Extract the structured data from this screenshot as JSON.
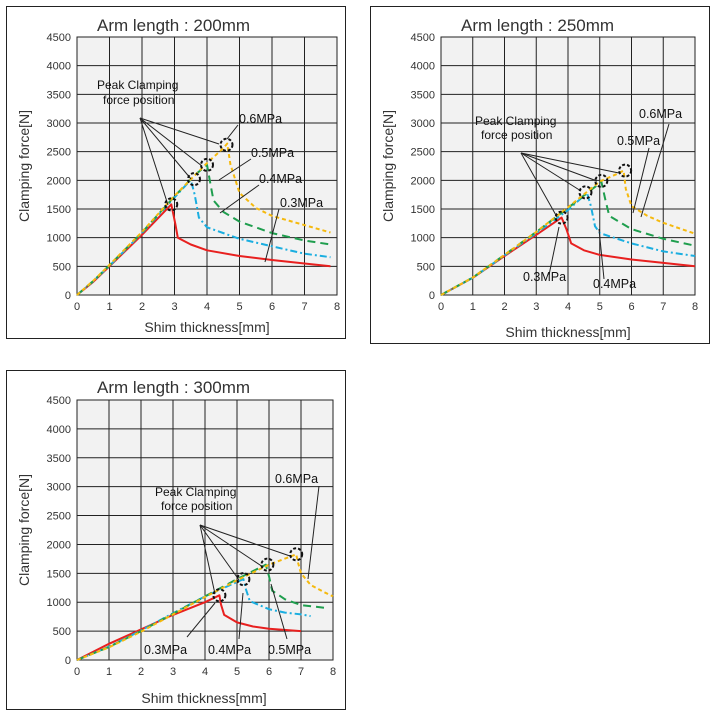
{
  "chart_data": [
    {
      "type": "line",
      "title": "Arm length : 200mm",
      "xlabel": "Shim thickness[mm]",
      "ylabel": "Clamping force[N]",
      "xlim": [
        0,
        8
      ],
      "ylim": [
        0,
        4500
      ],
      "xticks": [
        "0",
        "1",
        "2",
        "3",
        "4",
        "5",
        "6",
        "7",
        "8"
      ],
      "yticks": [
        "0",
        "500",
        "1000",
        "1500",
        "2000",
        "2500",
        "3000",
        "3500",
        "4000",
        "4500"
      ],
      "grid": true,
      "annotation": [
        "Peak Clamping",
        "force position"
      ],
      "series": [
        {
          "name": "0.3MPa",
          "color": "#e8201f",
          "dash": "",
          "points": [
            [
              0,
              0
            ],
            [
              0.5,
              230
            ],
            [
              1,
              500
            ],
            [
              2,
              1050
            ],
            [
              2.9,
              1580
            ],
            [
              3.02,
              1250
            ],
            [
              3.1,
              1000
            ],
            [
              3.5,
              880
            ],
            [
              4,
              780
            ],
            [
              5,
              680
            ],
            [
              6,
              610
            ],
            [
              7,
              550
            ],
            [
              7.8,
              500
            ]
          ]
        },
        {
          "name": "0.4MPa",
          "color": "#1aaee0",
          "dash": "7,3,2,3",
          "points": [
            [
              0,
              0
            ],
            [
              0.5,
              240
            ],
            [
              1,
              510
            ],
            [
              2,
              1080
            ],
            [
              3,
              1700
            ],
            [
              3.5,
              2010
            ],
            [
              3.62,
              1750
            ],
            [
              3.75,
              1350
            ],
            [
              4,
              1180
            ],
            [
              5,
              980
            ],
            [
              6,
              850
            ],
            [
              7,
              720
            ],
            [
              7.8,
              660
            ]
          ]
        },
        {
          "name": "0.5MPa",
          "color": "#1f9e4e",
          "dash": "8,5",
          "points": [
            [
              0,
              0
            ],
            [
              0.5,
              245
            ],
            [
              1,
              520
            ],
            [
              2,
              1090
            ],
            [
              3,
              1720
            ],
            [
              3.6,
              2080
            ],
            [
              4,
              2270
            ],
            [
              4.1,
              1950
            ],
            [
              4.2,
              1650
            ],
            [
              4.5,
              1450
            ],
            [
              5,
              1280
            ],
            [
              6,
              1080
            ],
            [
              7,
              950
            ],
            [
              7.8,
              880
            ]
          ]
        },
        {
          "name": "0.6MPa",
          "color": "#f5b90d",
          "dash": "4,3",
          "points": [
            [
              0,
              0
            ],
            [
              0.5,
              250
            ],
            [
              1,
              525
            ],
            [
              2,
              1100
            ],
            [
              3,
              1730
            ],
            [
              4,
              2300
            ],
            [
              4.5,
              2560
            ],
            [
              4.62,
              2640
            ],
            [
              4.72,
              2280
            ],
            [
              5,
              1780
            ],
            [
              5.5,
              1520
            ],
            [
              6,
              1380
            ],
            [
              7,
              1220
            ],
            [
              7.8,
              1090
            ]
          ]
        }
      ],
      "peak_markers": [
        [
          2.9,
          1580
        ],
        [
          3.6,
          2020
        ],
        [
          4,
          2270
        ],
        [
          4.6,
          2620
        ]
      ],
      "curve_labels": [
        "0.6MPa",
        "0.5MPa",
        "0.4MPa",
        "0.3MPa"
      ]
    },
    {
      "type": "line",
      "title": "Arm length : 250mm",
      "xlabel": "Shim thickness[mm]",
      "ylabel": "Clamping force[N]",
      "xlim": [
        0,
        8
      ],
      "ylim": [
        0,
        4500
      ],
      "xticks": [
        "0",
        "1",
        "2",
        "3",
        "4",
        "5",
        "6",
        "7",
        "8"
      ],
      "yticks": [
        "0",
        "500",
        "1000",
        "1500",
        "2000",
        "2500",
        "3000",
        "3500",
        "4000",
        "4500"
      ],
      "grid": true,
      "annotation": [
        "Peak Clamping",
        "force position"
      ],
      "series": [
        {
          "name": "0.3MPa",
          "color": "#e8201f",
          "dash": "",
          "points": [
            [
              0,
              0
            ],
            [
              1,
              300
            ],
            [
              2,
              680
            ],
            [
              3,
              1050
            ],
            [
              3.8,
              1350
            ],
            [
              3.95,
              1150
            ],
            [
              4.1,
              900
            ],
            [
              4.5,
              780
            ],
            [
              5,
              700
            ],
            [
              6,
              620
            ],
            [
              7,
              560
            ],
            [
              8,
              500
            ]
          ]
        },
        {
          "name": "0.4MPa",
          "color": "#1aaee0",
          "dash": "7,3,2,3",
          "points": [
            [
              0,
              0
            ],
            [
              1,
              300
            ],
            [
              2,
              690
            ],
            [
              3,
              1080
            ],
            [
              4,
              1480
            ],
            [
              4.6,
              1780
            ],
            [
              4.72,
              1550
            ],
            [
              4.85,
              1200
            ],
            [
              5,
              1080
            ],
            [
              6,
              900
            ],
            [
              7,
              760
            ],
            [
              8,
              680
            ]
          ]
        },
        {
          "name": "0.5MPa",
          "color": "#1f9e4e",
          "dash": "8,5",
          "points": [
            [
              0,
              0
            ],
            [
              1,
              305
            ],
            [
              2,
              700
            ],
            [
              3,
              1100
            ],
            [
              4,
              1520
            ],
            [
              5,
              1950
            ],
            [
              5.05,
              1980
            ],
            [
              5.18,
              1650
            ],
            [
              5.3,
              1380
            ],
            [
              6,
              1150
            ],
            [
              7,
              980
            ],
            [
              8,
              860
            ]
          ]
        },
        {
          "name": "0.6MPa",
          "color": "#f5b90d",
          "dash": "4,3",
          "points": [
            [
              0,
              0
            ],
            [
              1,
              305
            ],
            [
              2,
              700
            ],
            [
              3,
              1100
            ],
            [
              4,
              1530
            ],
            [
              5,
              1980
            ],
            [
              5.5,
              2100
            ],
            [
              5.75,
              2170
            ],
            [
              5.82,
              1850
            ],
            [
              6,
              1550
            ],
            [
              6.5,
              1380
            ],
            [
              7,
              1260
            ],
            [
              8,
              1070
            ]
          ]
        }
      ],
      "peak_markers": [
        [
          3.8,
          1350
        ],
        [
          4.55,
          1790
        ],
        [
          5.05,
          1990
        ],
        [
          5.8,
          2170
        ]
      ],
      "curve_labels": [
        "0.6MPa",
        "0.5MPa",
        "0.3MPa",
        "0.4MPa"
      ]
    },
    {
      "type": "line",
      "title": "Arm length : 300mm",
      "xlabel": "Shim thickness[mm]",
      "ylabel": "Clamping force[N]",
      "xlim": [
        0,
        8
      ],
      "ylim": [
        0,
        4500
      ],
      "xticks": [
        "0",
        "1",
        "2",
        "3",
        "4",
        "5",
        "6",
        "7",
        "8"
      ],
      "yticks": [
        "0",
        "500",
        "1000",
        "1500",
        "2000",
        "2500",
        "3000",
        "3500",
        "4000",
        "4500"
      ],
      "grid": true,
      "annotation": [
        "Peak Clamping",
        "force position"
      ],
      "series": [
        {
          "name": "0.3MPa",
          "color": "#e8201f",
          "dash": "",
          "points": [
            [
              0,
              0
            ],
            [
              0.5,
              140
            ],
            [
              1,
              280
            ],
            [
              2,
              530
            ],
            [
              3,
              780
            ],
            [
              4,
              1000
            ],
            [
              4.45,
              1120
            ],
            [
              4.5,
              960
            ],
            [
              4.6,
              780
            ],
            [
              5,
              650
            ],
            [
              5.5,
              580
            ],
            [
              6,
              540
            ],
            [
              7,
              500
            ]
          ]
        },
        {
          "name": "0.4MPa",
          "color": "#1aaee0",
          "dash": "7,3,2,3",
          "points": [
            [
              0,
              0
            ],
            [
              1,
              230
            ],
            [
              2,
              510
            ],
            [
              3,
              810
            ],
            [
              4,
              1100
            ],
            [
              5,
              1350
            ],
            [
              5.2,
              1400
            ],
            [
              5.28,
              1220
            ],
            [
              5.4,
              1020
            ],
            [
              6,
              880
            ],
            [
              6.5,
              820
            ],
            [
              7,
              790
            ],
            [
              7.3,
              760
            ]
          ]
        },
        {
          "name": "0.5MPa",
          "color": "#1f9e4e",
          "dash": "8,5",
          "points": [
            [
              0,
              0
            ],
            [
              1,
              225
            ],
            [
              2,
              500
            ],
            [
              3,
              800
            ],
            [
              4,
              1100
            ],
            [
              5,
              1400
            ],
            [
              5.9,
              1650
            ],
            [
              6,
              1450
            ],
            [
              6.1,
              1200
            ],
            [
              6.5,
              1050
            ],
            [
              7,
              950
            ],
            [
              7.8,
              900
            ]
          ]
        },
        {
          "name": "0.6MPa",
          "color": "#f5b90d",
          "dash": "4,3",
          "points": [
            [
              0,
              0
            ],
            [
              1,
              220
            ],
            [
              2,
              490
            ],
            [
              3,
              790
            ],
            [
              4,
              1090
            ],
            [
              5,
              1380
            ],
            [
              6,
              1650
            ],
            [
              6.85,
              1830
            ],
            [
              6.9,
              1700
            ],
            [
              7,
              1500
            ],
            [
              7.3,
              1300
            ],
            [
              7.7,
              1180
            ],
            [
              8,
              1100
            ]
          ]
        }
      ],
      "peak_markers": [
        [
          4.45,
          1120
        ],
        [
          5.2,
          1400
        ],
        [
          5.95,
          1650
        ],
        [
          6.85,
          1830
        ]
      ],
      "curve_labels": [
        "0.6MPa",
        "0.3MPa",
        "0.4MPa",
        "0.5MPa"
      ]
    }
  ]
}
